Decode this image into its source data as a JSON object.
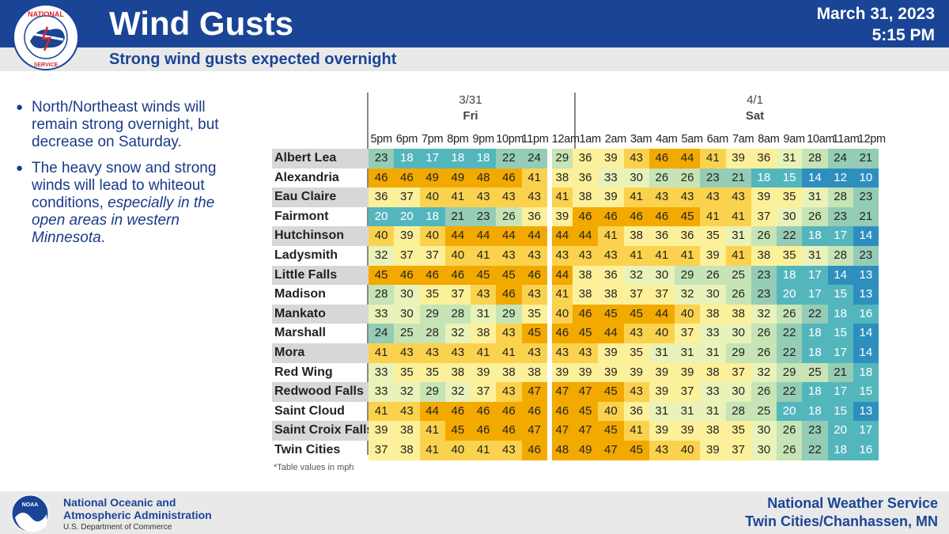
{
  "header": {
    "title": "Wind Gusts",
    "date": "March 31, 2023",
    "time": "5:15 PM",
    "subtitle": "Strong wind gusts expected overnight"
  },
  "bullets": [
    {
      "text": "North/Northeast winds will remain strong overnight, but decrease on Saturday."
    },
    {
      "text_plain": "The heavy snow and strong winds will lead to whiteout conditions, ",
      "text_italic": "especially in the open areas in western Minnesota",
      "text_end": "."
    }
  ],
  "table": {
    "days": [
      {
        "date": "3/31",
        "weekday": "Fri"
      },
      {
        "date": "4/1",
        "weekday": "Sat"
      }
    ],
    "hours": [
      "5pm",
      "6pm",
      "7pm",
      "8pm",
      "9pm",
      "10pm",
      "11pm",
      "12am",
      "1am",
      "2am",
      "3am",
      "4am",
      "5am",
      "6am",
      "7am",
      "8am",
      "9am",
      "10am",
      "11am",
      "12pm"
    ],
    "rows": [
      {
        "city": "Albert Lea",
        "values": [
          23,
          18,
          17,
          18,
          18,
          22,
          24,
          29,
          36,
          39,
          43,
          46,
          44,
          41,
          39,
          36,
          31,
          28,
          24,
          21
        ]
      },
      {
        "city": "Alexandria",
        "values": [
          46,
          46,
          49,
          49,
          48,
          46,
          41,
          38,
          36,
          33,
          30,
          26,
          26,
          23,
          21,
          18,
          15,
          14,
          12,
          10
        ]
      },
      {
        "city": "Eau Claire",
        "values": [
          36,
          37,
          40,
          41,
          43,
          43,
          43,
          41,
          38,
          39,
          41,
          43,
          43,
          43,
          43,
          39,
          35,
          31,
          28,
          23
        ]
      },
      {
        "city": "Fairmont",
        "values": [
          20,
          20,
          18,
          21,
          23,
          26,
          36,
          39,
          46,
          46,
          46,
          46,
          45,
          41,
          41,
          37,
          30,
          26,
          23,
          21
        ]
      },
      {
        "city": "Hutchinson",
        "values": [
          40,
          39,
          40,
          44,
          44,
          44,
          44,
          44,
          44,
          41,
          38,
          36,
          36,
          35,
          31,
          26,
          22,
          18,
          17,
          14
        ]
      },
      {
        "city": "Ladysmith",
        "values": [
          32,
          37,
          37,
          40,
          41,
          43,
          43,
          43,
          43,
          43,
          41,
          41,
          41,
          39,
          41,
          38,
          35,
          31,
          28,
          23
        ]
      },
      {
        "city": "Little Falls",
        "values": [
          45,
          46,
          46,
          46,
          45,
          45,
          46,
          44,
          38,
          36,
          32,
          30,
          29,
          26,
          25,
          23,
          18,
          17,
          14,
          13
        ]
      },
      {
        "city": "Madison",
        "values": [
          28,
          30,
          35,
          37,
          43,
          46,
          43,
          41,
          38,
          38,
          37,
          37,
          32,
          30,
          26,
          23,
          20,
          17,
          15,
          13
        ]
      },
      {
        "city": "Mankato",
        "values": [
          33,
          30,
          29,
          28,
          31,
          29,
          35,
          40,
          46,
          45,
          45,
          44,
          40,
          38,
          38,
          32,
          26,
          22,
          18,
          16
        ]
      },
      {
        "city": "Marshall",
        "values": [
          24,
          25,
          28,
          32,
          38,
          43,
          45,
          46,
          45,
          44,
          43,
          40,
          37,
          33,
          30,
          26,
          22,
          18,
          15,
          14
        ]
      },
      {
        "city": "Mora",
        "values": [
          41,
          43,
          43,
          43,
          41,
          41,
          43,
          43,
          43,
          39,
          35,
          31,
          31,
          31,
          29,
          26,
          22,
          18,
          17,
          14
        ]
      },
      {
        "city": "Red Wing",
        "values": [
          33,
          35,
          35,
          38,
          39,
          38,
          38,
          39,
          39,
          39,
          39,
          39,
          39,
          38,
          37,
          32,
          29,
          25,
          21,
          18
        ]
      },
      {
        "city": "Redwood Falls",
        "values": [
          33,
          32,
          29,
          32,
          37,
          43,
          47,
          47,
          47,
          45,
          43,
          39,
          37,
          33,
          30,
          26,
          22,
          18,
          17,
          15
        ]
      },
      {
        "city": "Saint Cloud",
        "values": [
          41,
          43,
          44,
          46,
          46,
          46,
          46,
          46,
          45,
          40,
          36,
          31,
          31,
          31,
          28,
          25,
          20,
          18,
          15,
          13
        ]
      },
      {
        "city": "Saint Croix Falls",
        "values": [
          39,
          38,
          41,
          45,
          46,
          46,
          47,
          47,
          47,
          45,
          41,
          39,
          39,
          38,
          35,
          30,
          26,
          23,
          20,
          17
        ]
      },
      {
        "city": "Twin Cities",
        "values": [
          37,
          38,
          41,
          40,
          41,
          43,
          46,
          48,
          49,
          47,
          45,
          43,
          40,
          39,
          37,
          30,
          26,
          22,
          18,
          16
        ]
      }
    ],
    "note": "*Table values in mph",
    "colors": {
      "high": "#f2a900",
      "mid_high": "#fbd24e",
      "mid": "#fdf09a",
      "low_mid": "#e9f2b8",
      "low": "#c6e4b5",
      "lower": "#95ccb5",
      "lowest": "#54b6bd",
      "min": "#2e8fbf"
    }
  },
  "footer": {
    "noaa_line1": "National Oceanic and",
    "noaa_line2": "Atmospheric Administration",
    "noaa_line3": "U.S. Department of Commerce",
    "nws_line1": "National Weather Service",
    "nws_line2": "Twin Cities/Chanhassen, MN"
  }
}
